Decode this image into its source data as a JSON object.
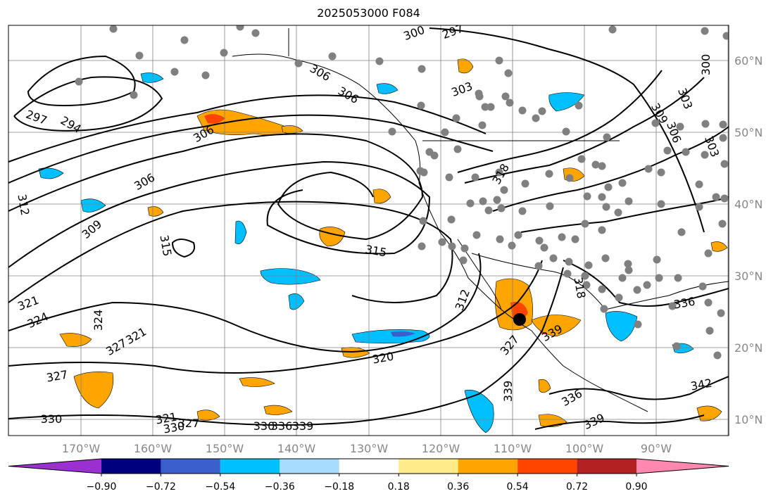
{
  "title": "2025053000 F084",
  "map": {
    "longitude_labels": [
      "170°W",
      "160°W",
      "150°W",
      "140°W",
      "130°W",
      "120°W",
      "110°W",
      "100°W",
      "90°W"
    ],
    "latitude_labels": [
      "60°N",
      "50°N",
      "40°N",
      "30°N",
      "20°N",
      "10°N"
    ],
    "contour_labels": [
      "300",
      "297",
      "303",
      "306",
      "306",
      "303",
      "306",
      "297",
      "294",
      "306",
      "309",
      "312",
      "315",
      "315",
      "312",
      "318",
      "318",
      "320",
      "321",
      "324",
      "324",
      "327",
      "321",
      "327",
      "330",
      "321",
      "330",
      "327",
      "339",
      "336",
      "339",
      "336",
      "339",
      "327",
      "336",
      "339",
      "342",
      "330",
      "300",
      "303",
      "306",
      "309"
    ],
    "colors": {
      "contour": "#000000",
      "coastline": "#000000",
      "grid": "#808080",
      "station_marker": "#808080",
      "storm_marker": "#000000"
    }
  },
  "colorbar": {
    "ticks": [
      "−0.90",
      "−0.72",
      "−0.54",
      "−0.36",
      "−0.18",
      "0.18",
      "0.36",
      "0.54",
      "0.72",
      "0.90"
    ],
    "colors": [
      "#9b30d0",
      "#00007f",
      "#3a5fcd",
      "#00bfff",
      "#a8dcff",
      "#ffffff",
      "#ffeb8a",
      "#ffa500",
      "#ff4500",
      "#b22222",
      "#ff88b0"
    ]
  }
}
